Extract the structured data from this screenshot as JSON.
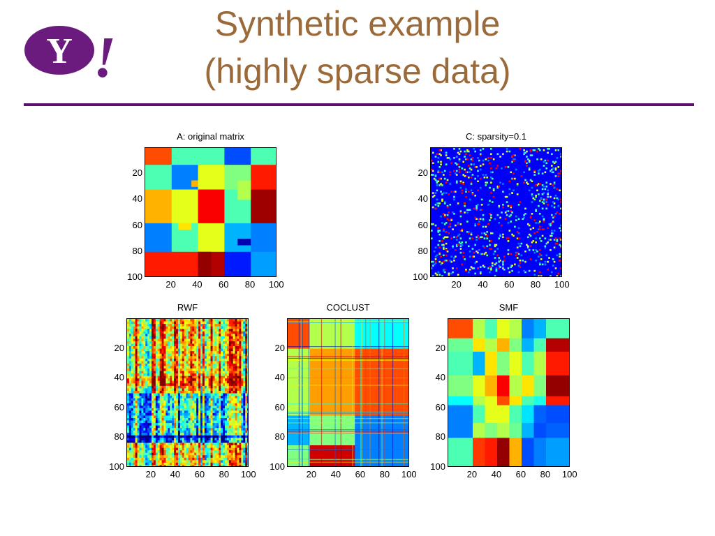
{
  "slide": {
    "title_line1": "Synthetic example",
    "title_line2": "(highly sparse data)",
    "title_color": "#9A6A3A",
    "accent_color": "#5B0F6E"
  },
  "logo": {
    "letter": "Y",
    "bang": "!",
    "color": "#6A1B7D"
  },
  "panels": [
    {
      "id": "A",
      "title": "A: original matrix",
      "kind": "blocks_orig"
    },
    {
      "id": "C",
      "title": "C: sparsity=0.1",
      "kind": "sparse"
    },
    {
      "id": "RWF",
      "title": "RWF",
      "kind": "noisy"
    },
    {
      "id": "COCLUST",
      "title": "COCLUST",
      "kind": "coclust"
    },
    {
      "id": "SMF",
      "title": "SMF",
      "kind": "blocks_smf"
    }
  ],
  "axis": {
    "x_ticks": [
      "20",
      "40",
      "60",
      "80",
      "100"
    ],
    "y_ticks": [
      "20",
      "40",
      "60",
      "80",
      "100"
    ],
    "range": [
      0,
      100
    ]
  },
  "colormap": "jet"
}
